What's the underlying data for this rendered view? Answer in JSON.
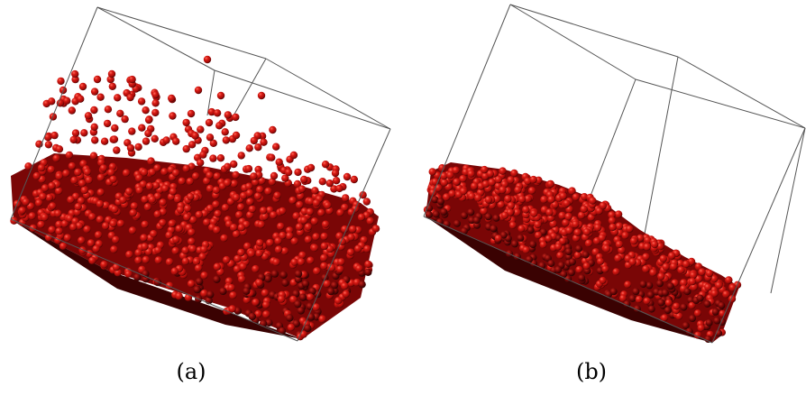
{
  "panels": [
    {
      "caption": "(a)",
      "state": "particles-suspended",
      "particle_color": "#c8120f"
    },
    {
      "caption": "(b)",
      "state": "particles-settled",
      "particle_color": "#c8120f"
    }
  ],
  "colors": {
    "particle": "#c8120f",
    "particle_highlight": "#ff5a4a",
    "particle_shadow": "#5a0606",
    "box_edge": "#444444",
    "background": "#ffffff"
  }
}
